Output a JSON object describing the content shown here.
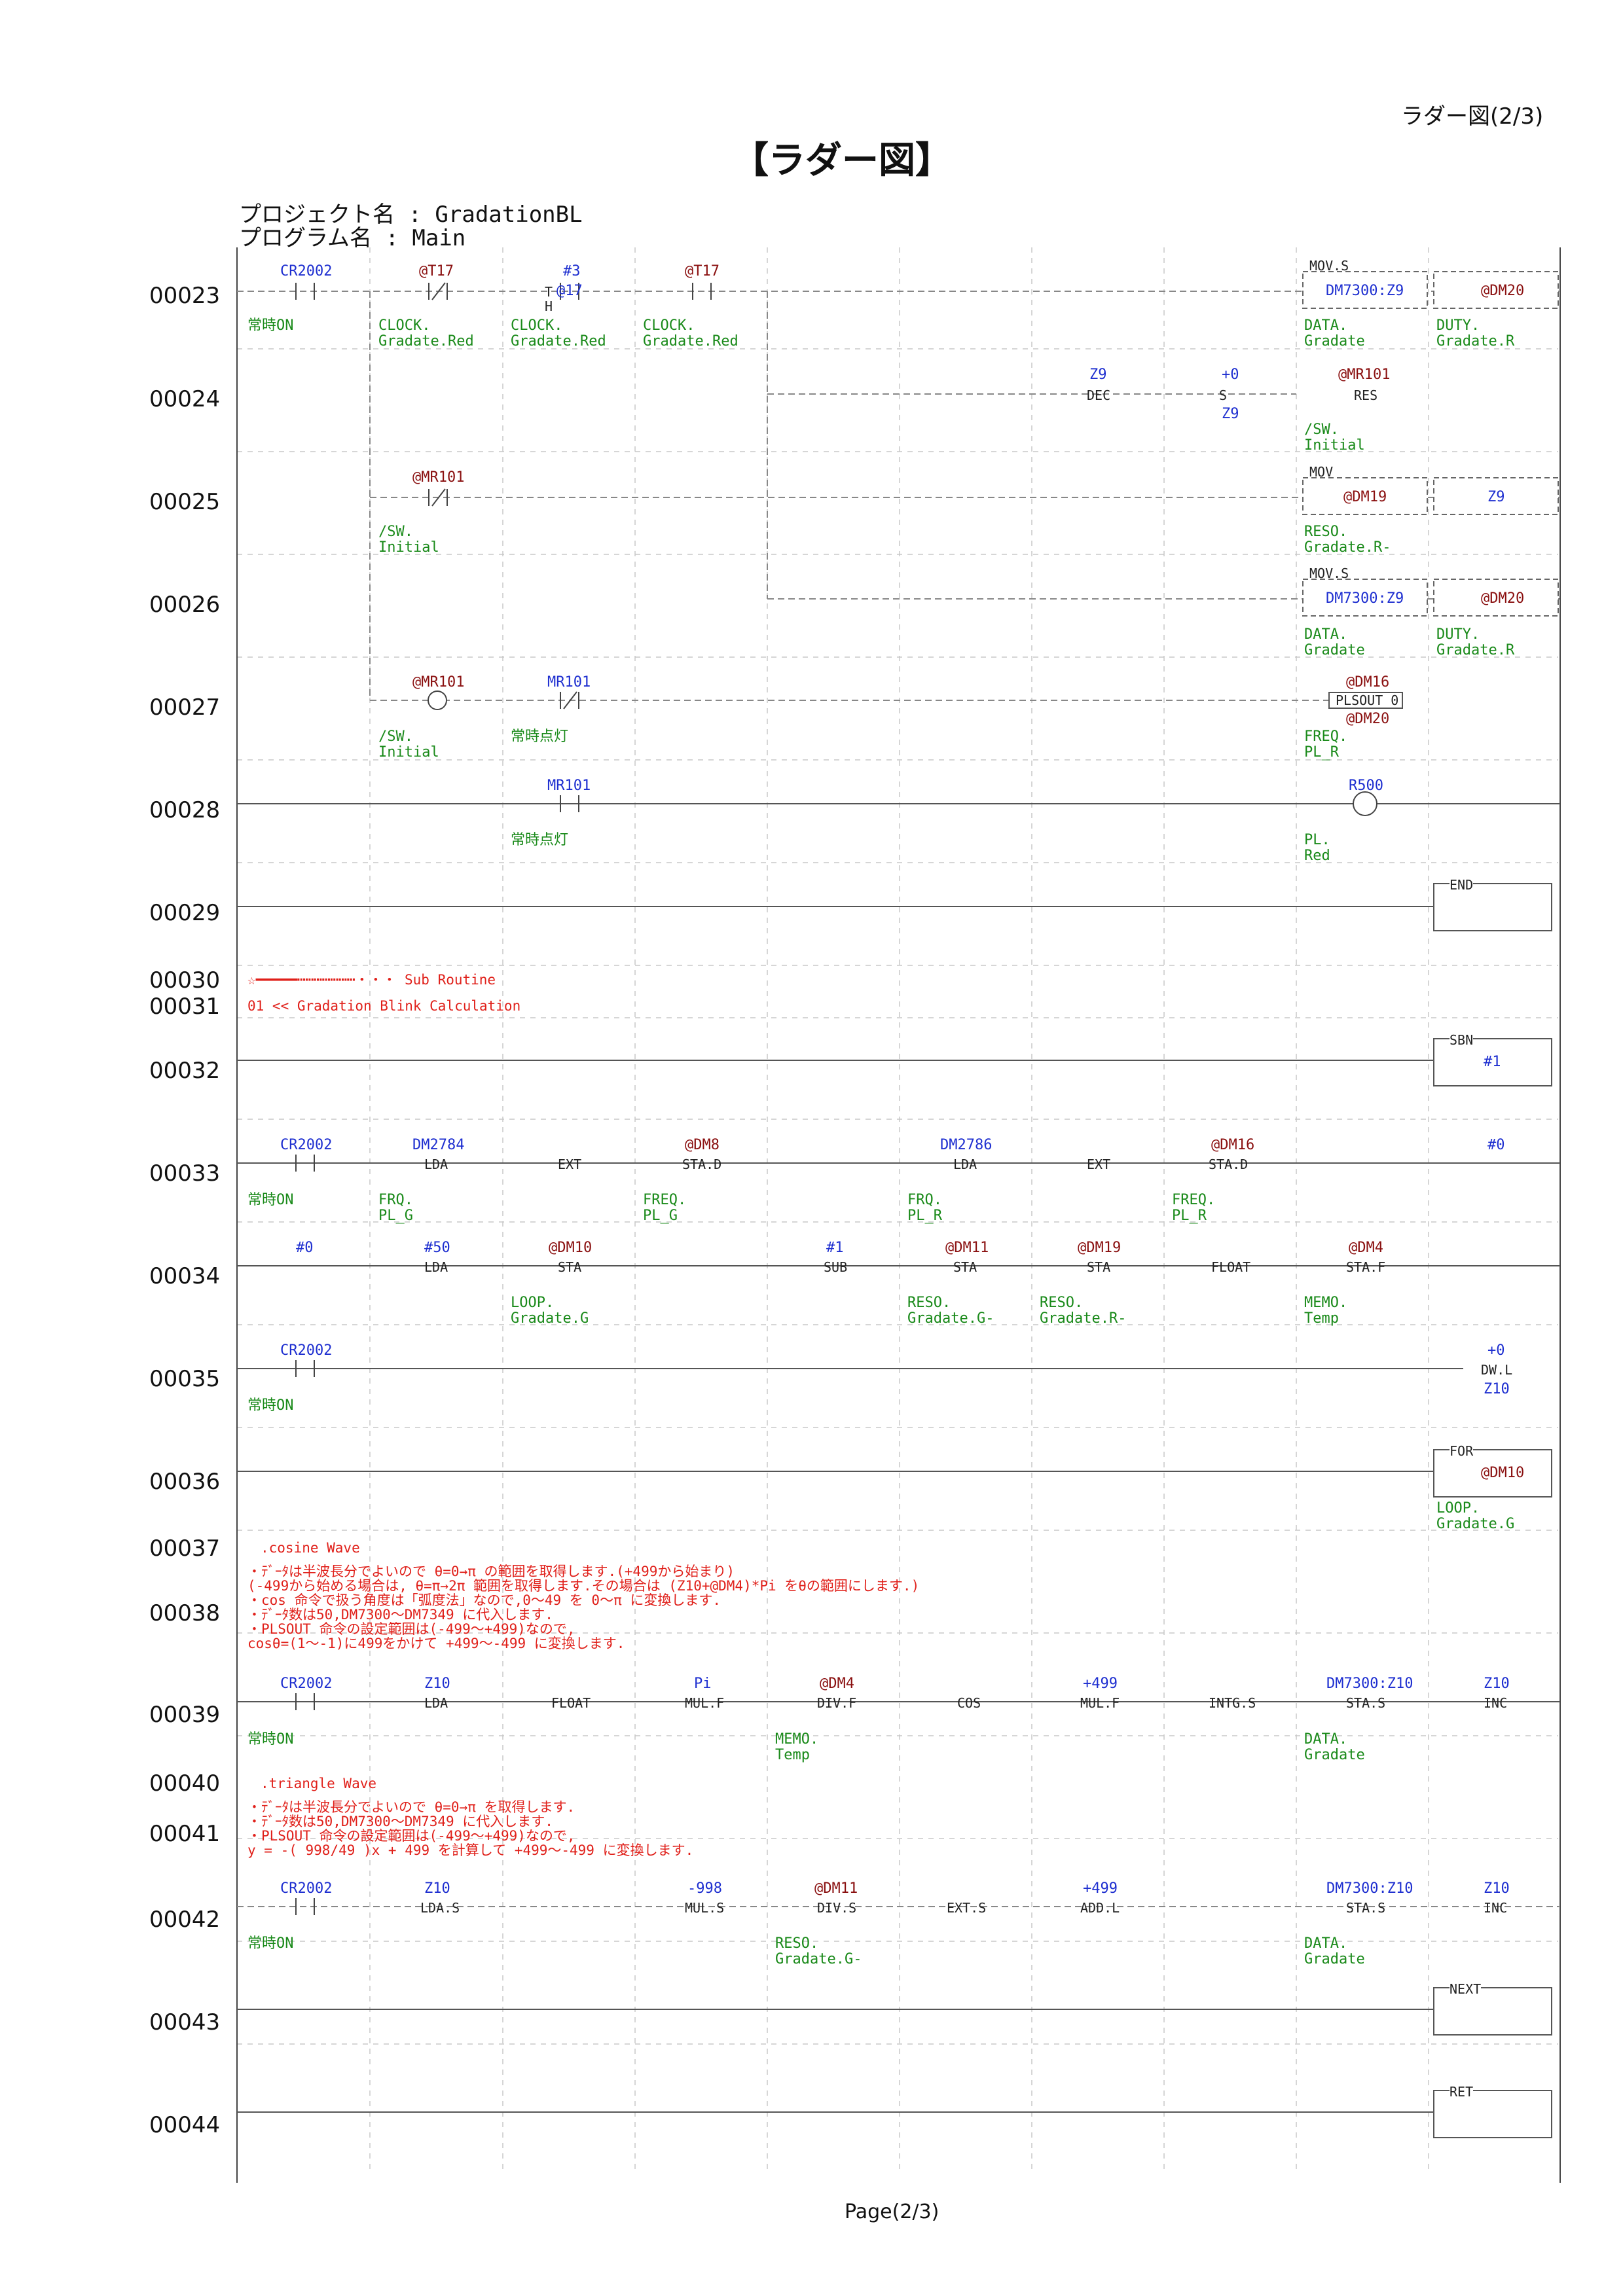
{
  "header": {
    "page_label": "ラダー図(2/3)",
    "title": "【ラダー図】"
  },
  "project": {
    "project_line": "プロジェクト名 : GradationBL",
    "program_line": "プログラム名 : Main"
  },
  "footer": {
    "page": "Page(2/3)"
  },
  "colors": {
    "device": "#1e2fd0",
    "comment": "#1a8a1a",
    "note": "#e0201a",
    "indexed": "#8a1010",
    "grid": "#c8c8c8"
  },
  "rungs": [
    {
      "no": "00023"
    },
    {
      "no": "00024"
    },
    {
      "no": "00025"
    },
    {
      "no": "00026"
    },
    {
      "no": "00027"
    },
    {
      "no": "00028"
    },
    {
      "no": "00029"
    },
    {
      "no": "00030"
    },
    {
      "no": "00031"
    },
    {
      "no": "00032"
    },
    {
      "no": "00033"
    },
    {
      "no": "00034"
    },
    {
      "no": "00035"
    },
    {
      "no": "00036"
    },
    {
      "no": "00037"
    },
    {
      "no": "00038"
    },
    {
      "no": "00039"
    },
    {
      "no": "00040"
    },
    {
      "no": "00041"
    },
    {
      "no": "00042"
    },
    {
      "no": "00043"
    },
    {
      "no": "00044"
    }
  ],
  "ladder": {
    "r23": {
      "c1": "CR2002",
      "c1_cmt": "常時ON",
      "c2": "@T17",
      "c2_cmt1": "CLOCK.",
      "c2_cmt2": "Gradate.Red",
      "c3": "#3",
      "c3_sub": "@17",
      "c3_t": "T",
      "c3_h": "H",
      "c3_cmt1": "CLOCK.",
      "c3_cmt2": "Gradate.Red",
      "c4": "@T17",
      "c4_cmt1": "CLOCK.",
      "c4_cmt2": "Gradate.Red",
      "box": "MOV.S",
      "src": "DM7300:Z9",
      "dst": "@DM20",
      "src_cmt1": "DATA.",
      "src_cmt2": "Gradate",
      "dst_cmt1": "DUTY.",
      "dst_cmt2": "Gradate.R"
    },
    "r24": {
      "dec_op": "Z9",
      "dec": "DEC",
      "s_top": "+0",
      "s": "S",
      "s_bot": "Z9",
      "res_op": "@MR101",
      "res": "RES",
      "res_cmt1": "/SW.",
      "res_cmt2": "Initial"
    },
    "r25": {
      "c": "@MR101",
      "c_cmt1": "/SW.",
      "c_cmt2": "Initial",
      "box": "MOV",
      "src": "@DM19",
      "dst": "Z9",
      "src_cmt1": "RESO.",
      "src_cmt2": "Gradate.R-"
    },
    "r26": {
      "box": "MOV.S",
      "src": "DM7300:Z9",
      "dst": "@DM20",
      "src_cmt1": "DATA.",
      "src_cmt2": "Gradate",
      "dst_cmt1": "DUTY.",
      "dst_cmt2": "Gradate.R"
    },
    "r27": {
      "c1": "@MR101",
      "c1_cmt1": "/SW.",
      "c1_cmt2": "Initial",
      "c2": "MR101",
      "c2_cmt": "常時点灯",
      "pl_top": "@DM16",
      "pl": "PLSOUT 0",
      "pl_bot": "@DM20",
      "pl_cmt1": "FREQ.",
      "pl_cmt2": "PL_R"
    },
    "r28": {
      "c": "MR101",
      "c_cmt": "常時点灯",
      "coil": "R500",
      "coil_cmt1": "PL.",
      "coil_cmt2": "Red"
    },
    "r29": {
      "box": "END"
    },
    "r30": {
      "note": "☆━━━━━┅┅┅┅┅┅┅・・・ Sub Routine"
    },
    "r31": {
      "note": "01 << Gradation Blink Calculation"
    },
    "r32": {
      "box": "SBN",
      "val": "#1"
    },
    "r33": {
      "c": "CR2002",
      "c_cmt": "常時ON",
      "i1_op": "DM2784",
      "i1": "LDA",
      "i1_cmt1": "FRQ.",
      "i1_cmt2": "PL_G",
      "i2": "EXT",
      "i3_op": "@DM8",
      "i3": "STA.D",
      "i3_cmt1": "FREQ.",
      "i3_cmt2": "PL_G",
      "i4_op": "DM2786",
      "i4": "LDA",
      "i4_cmt1": "FRQ.",
      "i4_cmt2": "PL_R",
      "i5": "EXT",
      "i6_op": "@DM16",
      "i6": "STA.D",
      "i6_cmt1": "FREQ.",
      "i6_cmt2": "PL_R",
      "link": "#0"
    },
    "r34": {
      "link": "#0",
      "i1_op": "#50",
      "i1": "LDA",
      "i2_op": "@DM10",
      "i2": "STA",
      "i2_cmt1": "LOOP.",
      "i2_cmt2": "Gradate.G",
      "i3_op": "#1",
      "i3": "SUB",
      "i4_op": "@DM11",
      "i4": "STA",
      "i4_cmt1": "RESO.",
      "i4_cmt2": "Gradate.G-",
      "i5_op": "@DM19",
      "i5": "STA",
      "i5_cmt1": "RESO.",
      "i5_cmt2": "Gradate.R-",
      "i6": "FLOAT",
      "i7_op": "@DM4",
      "i7": "STA.F",
      "i7_cmt1": "MEMO.",
      "i7_cmt2": "Temp"
    },
    "r35": {
      "c": "CR2002",
      "c_cmt": "常時ON",
      "out_top": "+0",
      "out": "DW.L",
      "out_bot": "Z10"
    },
    "r36": {
      "box": "FOR",
      "val": "@DM10",
      "cmt1": "LOOP.",
      "cmt2": "Gradate.G"
    },
    "r37": {
      "note": ".cosine Wave"
    },
    "r38": {
      "lines": [
        "・ﾃﾞｰﾀは半波長分でよいので θ=0→π の範囲を取得します.(+499から始まり)",
        "(-499から始める場合は, θ=π→2π 範囲を取得します.その場合は (Z10+@DM4)*Pi をθの範囲にします.)",
        "・cos 命令で扱う角度は「弧度法」なので,0～49 を 0～π に変換します.",
        "・ﾃﾞｰﾀ数は50,DM7300～DM7349 に代入します.",
        "・PLSOUT 命令の設定範囲は(-499～+499)なので,",
        "cosθ=(1～-1)に499をかけて +499～-499 に変換します."
      ]
    },
    "r39": {
      "c": "CR2002",
      "c_cmt": "常時ON",
      "i1_op": "Z10",
      "i1": "LDA",
      "i2": "FLOAT",
      "i3_op": "Pi",
      "i3": "MUL.F",
      "i4_op": "@DM4",
      "i4": "DIV.F",
      "i4_cmt1": "MEMO.",
      "i4_cmt2": "Temp",
      "i5": "COS",
      "i6_op": "+499",
      "i6": "MUL.F",
      "i7": "INTG.S",
      "i8_op": "DM7300:Z10",
      "i8": "STA.S",
      "i8_cmt1": "DATA.",
      "i8_cmt2": "Gradate",
      "i9_op": "Z10",
      "i9": "INC"
    },
    "r40": {
      "note": ".triangle Wave"
    },
    "r41": {
      "lines": [
        "・ﾃﾞｰﾀは半波長分でよいので θ=0→π を取得します.",
        "・ﾃﾞｰﾀ数は50,DM7300～DM7349 に代入します.",
        "・PLSOUT 命令の設定範囲は(-499～+499)なので,",
        "y = -( 998/49 )x + 499 を計算して +499～-499 に変換します."
      ]
    },
    "r42": {
      "c": "CR2002",
      "c_cmt": "常時ON",
      "i1_op": "Z10",
      "i1": "LDA.S",
      "i2_op": "-998",
      "i2": "MUL.S",
      "i3_op": "@DM11",
      "i3": "DIV.S",
      "i3_cmt1": "RESO.",
      "i3_cmt2": "Gradate.G-",
      "i4": "EXT.S",
      "i5_op": "+499",
      "i5": "ADD.L",
      "i6_op": "DM7300:Z10",
      "i6": "STA.S",
      "i6_cmt1": "DATA.",
      "i6_cmt2": "Gradate",
      "i7_op": "Z10",
      "i7": "INC"
    },
    "r43": {
      "box": "NEXT"
    },
    "r44": {
      "box": "RET"
    }
  }
}
